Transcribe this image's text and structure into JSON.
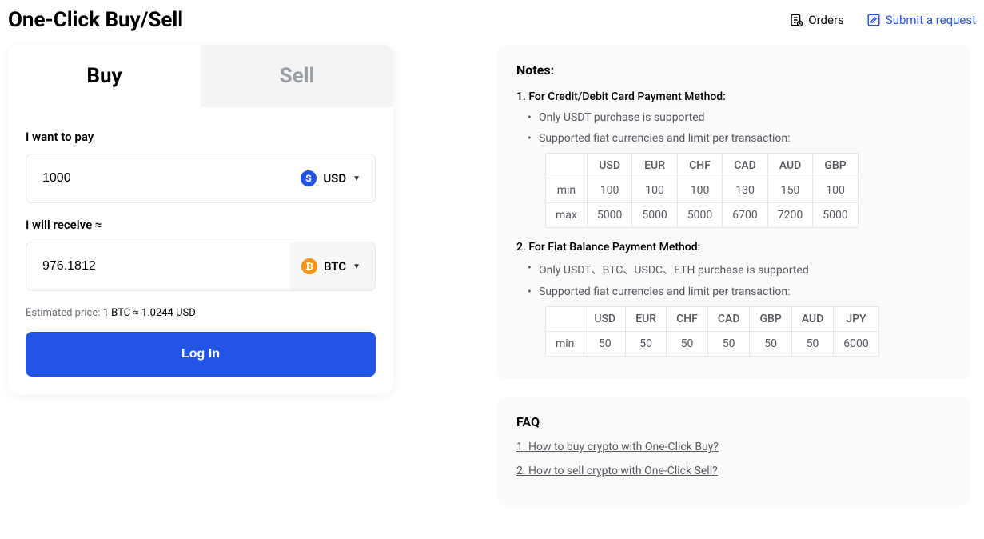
{
  "header": {
    "title": "One-Click Buy/Sell",
    "orders_label": "Orders",
    "submit_request_label": "Submit a request"
  },
  "card": {
    "tabs": {
      "buy": "Buy",
      "sell": "Sell",
      "active": "buy"
    },
    "pay": {
      "label": "I want to pay",
      "value": "1000",
      "currency": {
        "code": "USD",
        "icon_name": "usd-icon",
        "color": "#2354e6"
      }
    },
    "receive": {
      "label": "I will receive ≈",
      "value": "976.1812",
      "currency": {
        "code": "BTC",
        "icon_name": "btc-icon",
        "color": "#f7931a"
      }
    },
    "estimated_price": {
      "prefix": "Estimated price: ",
      "text": "1 BTC ≈ 1.0244 USD"
    },
    "login_button": "Log In"
  },
  "notes": {
    "title": "Notes:",
    "section1": {
      "heading": "1. For Credit/Debit Card Payment Method:",
      "bullets": [
        "Only USDT purchase is supported",
        "Supported fiat currencies and limit per transaction:"
      ],
      "table": {
        "columns": [
          "USD",
          "EUR",
          "CHF",
          "CAD",
          "AUD",
          "GBP"
        ],
        "rows": [
          {
            "label": "min",
            "values": [
              "100",
              "100",
              "100",
              "130",
              "150",
              "100"
            ]
          },
          {
            "label": "max",
            "values": [
              "5000",
              "5000",
              "5000",
              "6700",
              "7200",
              "5000"
            ]
          }
        ]
      }
    },
    "section2": {
      "heading": "2. For Fiat Balance Payment Method:",
      "bullets": [
        "Only USDT、BTC、USDC、ETH purchase is supported",
        "Supported fiat currencies and limit per transaction:"
      ],
      "table": {
        "columns": [
          "USD",
          "EUR",
          "CHF",
          "CAD",
          "GBP",
          "AUD",
          "JPY"
        ],
        "rows": [
          {
            "label": "min",
            "values": [
              "50",
              "50",
              "50",
              "50",
              "50",
              "50",
              "6000"
            ]
          }
        ]
      }
    }
  },
  "faq": {
    "title": "FAQ",
    "links": [
      "1. How to buy crypto with One-Click Buy?",
      "2. How to sell crypto with One-Click Sell?"
    ]
  },
  "colors": {
    "accent": "#2354e6",
    "btc": "#f7931a",
    "border": "#e6e6e9",
    "panel_bg": "#fafafb",
    "muted_text": "#55585f"
  }
}
